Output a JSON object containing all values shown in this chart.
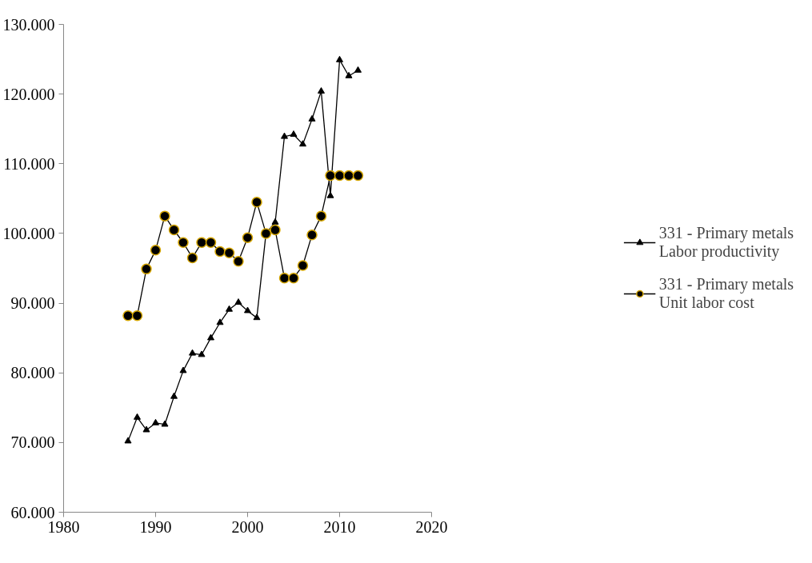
{
  "chart_data": {
    "type": "line",
    "x": [
      1987,
      1988,
      1989,
      1990,
      1991,
      1992,
      1993,
      1994,
      1995,
      1996,
      1997,
      1998,
      1999,
      2000,
      2001,
      2002,
      2003,
      2004,
      2005,
      2006,
      2007,
      2008,
      2009,
      2010,
      2011,
      2012
    ],
    "series": [
      {
        "name": "331 - Primary metals\nLabor productivity",
        "color": "#000000",
        "marker": "triangle",
        "values": [
          70.2,
          73.6,
          71.8,
          72.8,
          72.6,
          76.6,
          80.3,
          82.8,
          82.6,
          85.0,
          87.2,
          89.1,
          90.1,
          88.9,
          87.9,
          100.0,
          101.6,
          113.9,
          114.2,
          112.8,
          116.4,
          120.4,
          105.4,
          124.9,
          122.6,
          123.4
        ]
      },
      {
        "name": "331 - Primary metals\nUnit labor cost",
        "color": "#d4a500",
        "marker": "circle",
        "values": [
          88.2,
          88.2,
          94.9,
          97.6,
          102.5,
          100.5,
          98.7,
          96.5,
          98.7,
          98.7,
          97.4,
          97.2,
          96.0,
          99.4,
          104.5,
          100.0,
          100.5,
          93.6,
          93.6,
          95.4,
          99.8,
          102.5,
          108.3,
          108.3,
          108.3,
          108.3
        ]
      }
    ],
    "xlim": [
      1980,
      2020
    ],
    "xticks": [
      1980,
      1990,
      2000,
      2010,
      2020
    ],
    "ylim": [
      60,
      130
    ],
    "yticks": [
      {
        "value": 60,
        "label": "60.000"
      },
      {
        "value": 70,
        "label": "70.000"
      },
      {
        "value": 80,
        "label": "80.000"
      },
      {
        "value": 90,
        "label": "90.000"
      },
      {
        "value": 100,
        "label": "100.000"
      },
      {
        "value": 110,
        "label": "110.000"
      },
      {
        "value": 120,
        "label": "120.000"
      },
      {
        "value": 130,
        "label": "130.000"
      }
    ],
    "grid": false,
    "legend": "right",
    "line_style": "solid"
  }
}
